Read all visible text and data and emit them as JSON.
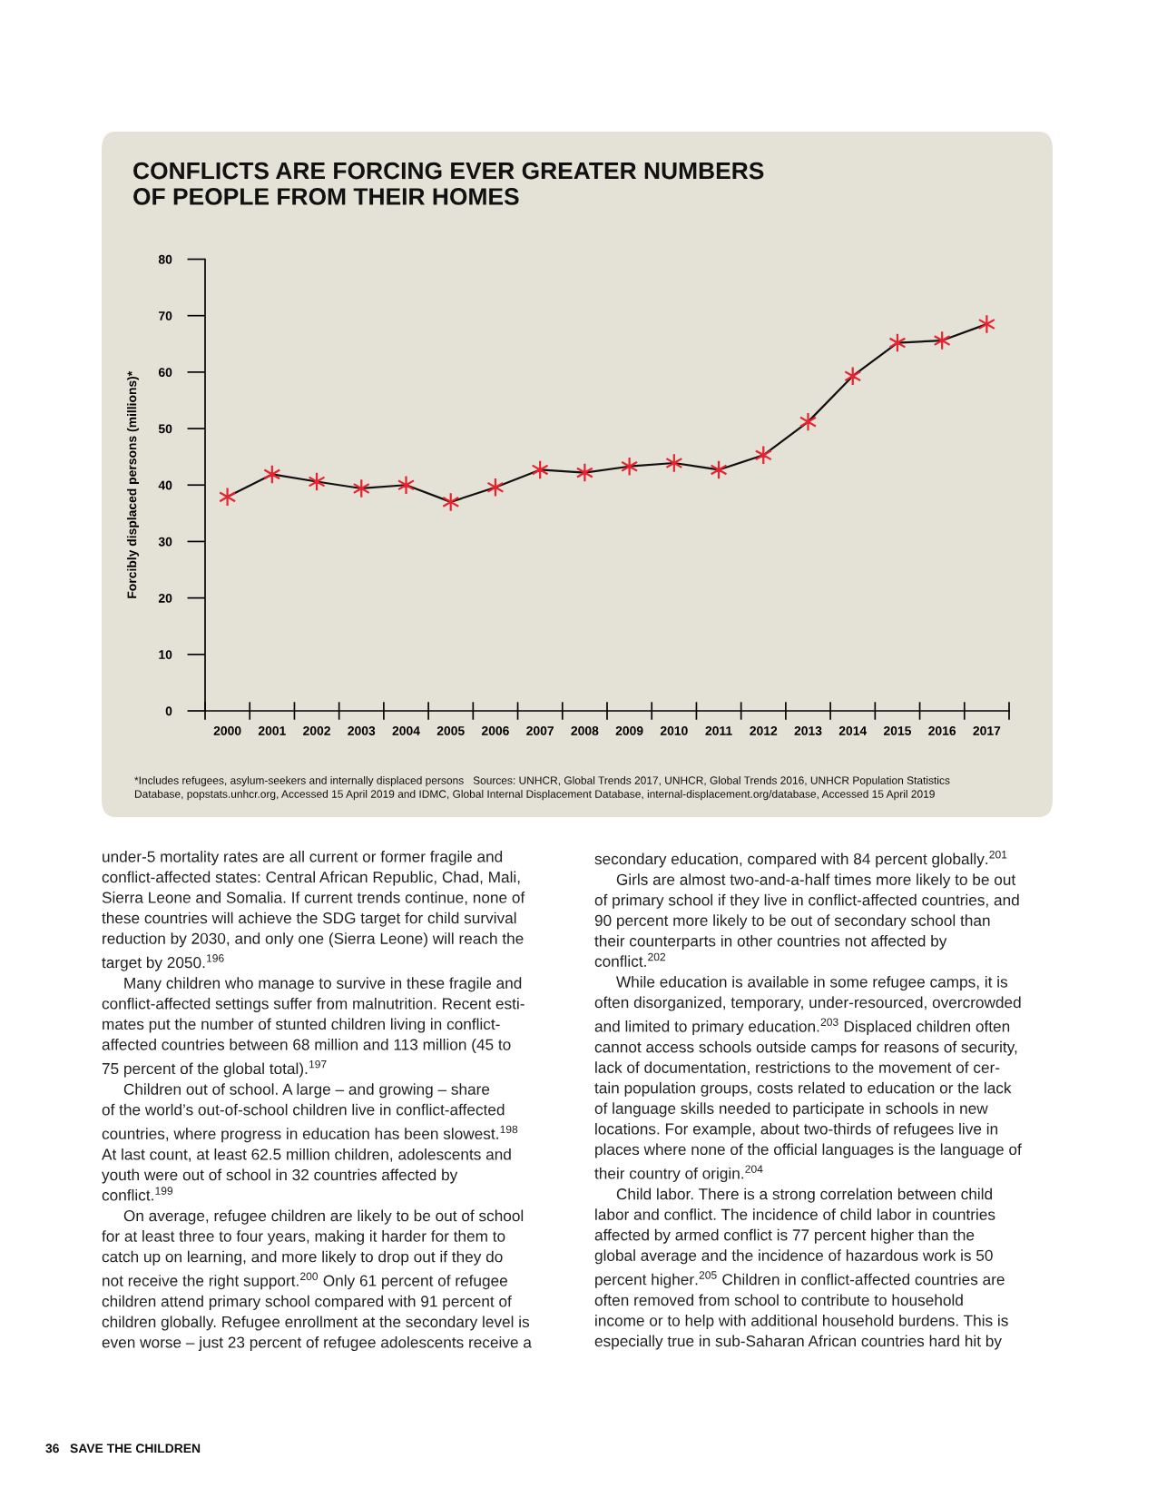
{
  "chart_data": {
    "type": "line",
    "title": "CONFLICTS ARE FORCING EVER GREATER NUMBERS\nOF PEOPLE FROM THEIR HOMES",
    "ylabel": "Forcibly displaced persons (millions)*",
    "categories": [
      "2000",
      "2001",
      "2002",
      "2003",
      "2004",
      "2005",
      "2006",
      "2007",
      "2008",
      "2009",
      "2010",
      "2011",
      "2012",
      "2013",
      "2014",
      "2015",
      "2016",
      "2017"
    ],
    "series": [
      {
        "color": "#e8222e",
        "values": [
          37.9,
          41.9,
          40.6,
          39.4,
          40.0,
          37.0,
          39.6,
          42.7,
          42.2,
          43.3,
          43.9,
          42.7,
          45.3,
          51.2,
          59.3,
          65.2,
          65.6,
          68.5
        ]
      }
    ],
    "ylim": [
      0,
      80
    ],
    "yticks": [
      0,
      10,
      20,
      30,
      40,
      50,
      60,
      70,
      80
    ],
    "grid": false,
    "legend": false,
    "marker": "cross",
    "line_style": "solid",
    "annotations": [
      "*Includes refugees, asylum-seekers and internally displaced persons   Sources: UNHCR, Global Trends 2017, UNHCR, Global Trends 2016, UNHCR Population Statistics\nDatabase, popstats.unhcr.org, Accessed 15 April 2019 and IDMC, Global Internal Displacement Database, internal-displacement.org/database, Accessed 15 April 2019",
      "under-5 mortality rates are all current or former fragile and\nconflict-affected states: Central African Republic, Chad, Mali,\nSierra Leone and Somalia. If current trends continue, none of\nthese countries will achieve the SDG target for child survival\nreduction by 2030, and only one (Sierra Leone) will reach the\ntarget by 2050.$^{196}$\n     Many children who manage to survive in these fragile and\nconflict-affected settings suffer from malnutrition. Recent esti-\nmates put the number of stunted children living in conflict-\naffected countries between 68 million and 113 million (45 to\n75 percent of the global total).$^{197}$\n     Children out of school. A large – and growing – share\nof the world’s out-of-school children live in conflict-affected\ncountries, where progress in education has been slowest.$^{198}$\nAt last count, at least 62.5 million children, adolescents and\nyouth were out of school in 32 countries affected by\nconflict.$^{199}$\n     On average, refugee children are likely to be out of school\nfor at least three to four years, making it harder for them to\ncatch up on learning, and more likely to drop out if they do\nnot receive the right support.$^{200}$ Only 61 percent of refugee\nchildren attend primary school compared with 91 percent of\nchildren globally. Refugee enrollment at the secondary level is\neven worse – just 23 percent of refugee adolescents receive a",
      "secondary education, compared with 84 percent globally.$^{201}$\n     Girls are almost two-and-a-half times more likely to be out\nof primary school if they live in conflict-affected countries, and\n90 percent more likely to be out of secondary school than\ntheir counterparts in other countries not affected by\nconflict.$^{202}$\n     While education is available in some refugee camps, it is\noften disorganized, temporary, under-resourced, overcrowded\nand limited to primary education.$^{203}$ Displaced children often\ncannot access schools outside camps for reasons of security,\nlack of documentation, restrictions to the movement of cer-\ntain population groups, costs related to education or the lack\nof language skills needed to participate in schools in new\nlocations. For example, about two-thirds of refugees live in\nplaces where none of the official languages is the language of\ntheir country of origin.$^{204}$\n     Child labor. There is a strong correlation between child\nlabor and conflict. The incidence of child labor in countries\naffected by armed conflict is 77 percent higher than the\nglobal average and the incidence of hazardous work is 50\npercent higher.$^{205}$ Children in conflict-affected countries are\noften removed from school to contribute to household\nincome or to help with additional household burdens. This is\nespecially true in sub-Saharan African countries hard hit by",
      "36   SAVE THE CHILDREN"
    ]
  }
}
